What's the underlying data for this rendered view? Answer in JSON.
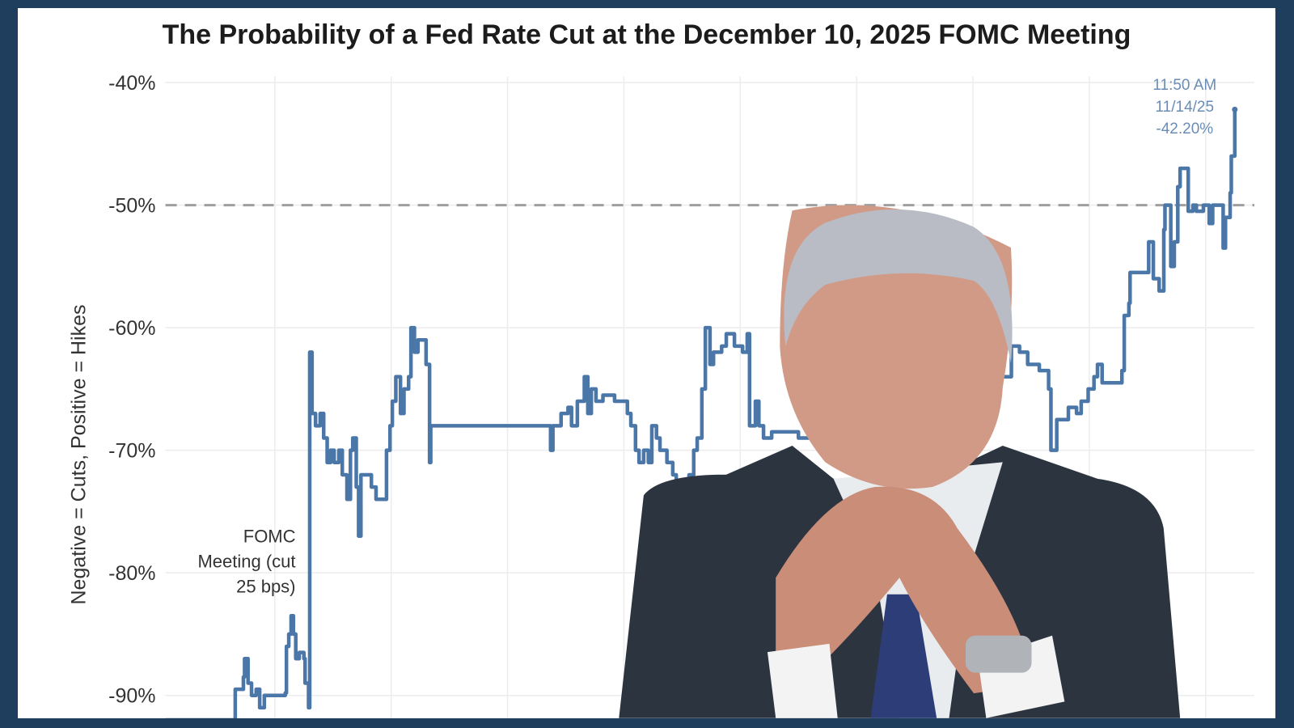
{
  "chart_data": {
    "type": "line",
    "title": "The Probability of a Fed Rate Cut at the December 10, 2025 FOMC Meeting",
    "ylabel": "Negative = Cuts, Positive = Hikes",
    "xlabel": "",
    "ylim": [
      -92,
      -39
    ],
    "yticks": [
      "-40%",
      "-50%",
      "-60%",
      "-70%",
      "-80%",
      "-90%"
    ],
    "ytick_values": [
      -40,
      -50,
      -60,
      -70,
      -80,
      -90
    ],
    "grid": true,
    "step": true,
    "reference_line": {
      "y": -50,
      "style": "dashed",
      "color": "#9e9e9e"
    },
    "series": [
      {
        "color": "#4a76a8",
        "x": [
          0.06,
          0.65,
          0.66,
          0.73,
          0.74,
          0.77,
          0.8,
          0.84,
          0.87,
          0.91,
          0.98,
          1.09,
          1.1,
          1.12,
          1.14,
          1.16,
          1.18,
          1.21,
          1.25,
          1.26,
          1.29,
          1.3,
          1.32,
          1.35,
          1.39,
          1.42,
          1.45,
          1.48,
          1.51,
          1.55,
          1.58,
          1.62,
          1.65,
          1.67,
          1.7,
          1.72,
          1.74,
          1.79,
          1.83,
          1.87,
          1.91,
          1.96,
          1.99,
          2.01,
          2.04,
          2.08,
          2.11,
          2.15,
          2.17,
          2.2,
          2.23,
          2.27,
          2.3,
          2.33,
          2.34,
          3.35,
          3.37,
          3.39,
          3.46,
          3.52,
          3.55,
          3.6,
          3.65,
          3.66,
          3.69,
          3.72,
          3.76,
          3.82,
          3.92,
          3.99,
          4.03,
          4.06,
          4.1,
          4.13,
          4.17,
          4.21,
          4.24,
          4.28,
          4.31,
          4.37,
          4.42,
          4.45,
          4.56,
          4.6,
          4.63,
          4.67,
          4.7,
          4.74,
          4.77,
          4.84,
          4.88,
          4.95,
          5.02,
          5.06,
          5.08,
          5.13,
          5.16,
          5.2,
          5.27,
          5.34,
          5.5,
          6.0,
          6.5,
          7.0,
          7.33,
          7.4,
          7.47,
          7.57,
          7.65,
          7.67,
          7.72,
          7.79,
          7.82,
          7.89,
          7.93,
          7.99,
          8.04,
          8.07,
          8.11,
          8.21,
          8.28,
          8.3,
          8.34,
          8.35,
          8.5,
          8.51,
          8.55,
          8.6,
          8.64,
          8.65,
          8.7,
          8.73,
          8.76,
          8.78,
          8.84,
          8.85,
          8.89,
          8.92,
          8.98,
          9.03,
          9.06,
          9.12,
          9.15,
          9.17,
          9.21,
          9.22,
          9.25
        ],
        "y": [
          -92,
          -92,
          -89.5,
          -88.5,
          -87,
          -89,
          -90,
          -89.5,
          -91,
          -90,
          -90,
          -89.8,
          -86,
          -85,
          -83.5,
          -85,
          -87,
          -86.5,
          -87,
          -89,
          -91,
          -62,
          -67,
          -68,
          -67,
          -69,
          -71,
          -70,
          -71,
          -70,
          -72,
          -74,
          -70,
          -69,
          -73,
          -77,
          -72,
          -72,
          -73,
          -74,
          -74,
          -70,
          -68,
          -66,
          -64,
          -67,
          -65,
          -64,
          -60,
          -62,
          -61,
          -61,
          -63,
          -71,
          -68,
          -68,
          -70,
          -68,
          -67,
          -66.5,
          -68,
          -66,
          -66,
          -64,
          -67,
          -65,
          -66,
          -65.5,
          -66,
          -66,
          -67,
          -68,
          -70,
          -71,
          -70,
          -71,
          -68,
          -69,
          -70,
          -71,
          -72,
          -73,
          -72,
          -70,
          -69,
          -65,
          -60,
          -63,
          -62,
          -61.5,
          -60.5,
          -61.5,
          -62,
          -60.5,
          -68,
          -66,
          -68,
          -69,
          -68.5,
          -68.5,
          -69,
          -70,
          -68,
          -64,
          -61.5,
          -62,
          -63,
          -63.5,
          -65,
          -70,
          -67.5,
          -67.5,
          -66.5,
          -67,
          -66,
          -65,
          -64,
          -63,
          -64.5,
          -64.5,
          -63.5,
          -59,
          -58,
          -55.5,
          -55.5,
          -53,
          -56,
          -57,
          -52,
          -50,
          -55,
          -53,
          -48.5,
          -47,
          -47,
          -50.5,
          -50,
          -50.5,
          -50,
          -51.5,
          -50,
          -50,
          -53.5,
          -51,
          -49,
          -46,
          -42.2
        ]
      }
    ],
    "annotations": [
      {
        "lines": [
          "FOMC",
          "Meeting (cut",
          "25 bps)"
        ],
        "x": 1.29
      },
      {
        "lines": [
          "11:50 AM",
          "11/14/25",
          "-42.20%"
        ],
        "x": 9.25,
        "y": -42.2
      }
    ]
  },
  "colors": {
    "frame": "#1f3d5c",
    "line": "#4a76a8",
    "annotation": "#6a8db5"
  }
}
